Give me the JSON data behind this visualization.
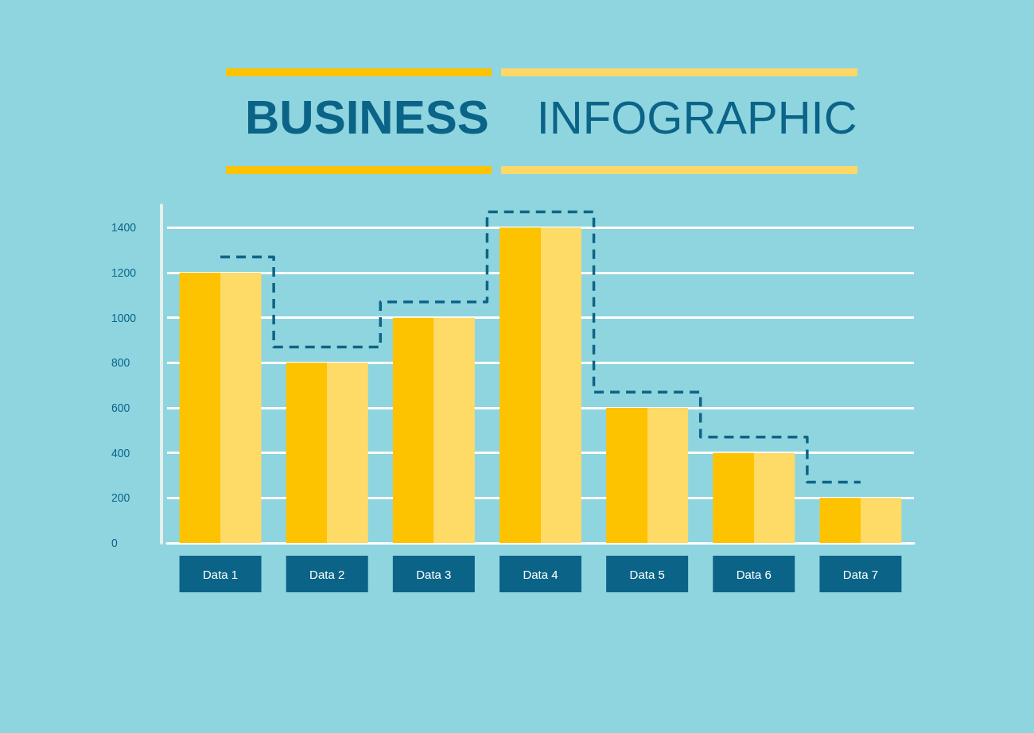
{
  "chart_data": {
    "type": "bar",
    "title": "BUSINESS INFOGRAPHIC",
    "categories": [
      "Data 1",
      "Data 2",
      "Data 3",
      "Data 4",
      "Data 5",
      "Data 6",
      "Data 7"
    ],
    "series": [
      {
        "color": "#fdc200",
        "values": [
          1200,
          800,
          1000,
          1400,
          600,
          400,
          200
        ]
      },
      {
        "type": "step",
        "color": "#0d6486",
        "values": [
          1270,
          870,
          1070,
          1470,
          670,
          470,
          270
        ],
        "line_style": "dashed",
        "marker": "none"
      }
    ],
    "ylim": [
      0,
      1500
    ],
    "yticks": [
      0,
      200,
      400,
      600,
      800,
      1000,
      1200,
      1400
    ],
    "grid": "y"
  }
}
